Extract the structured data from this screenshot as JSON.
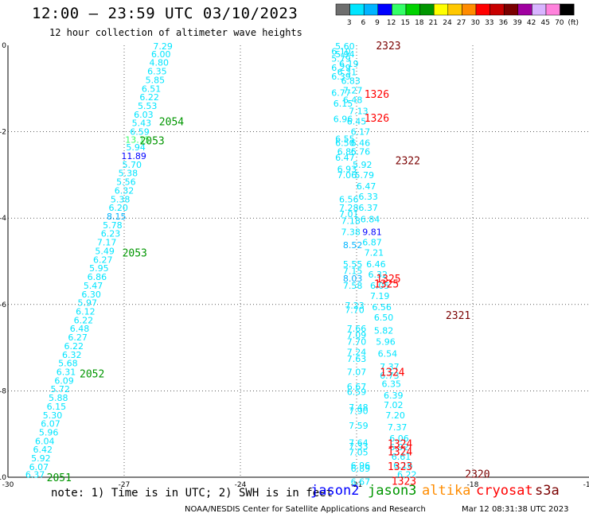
{
  "header": {
    "title": "12:00 — 23:59 UTC 03/10/2023",
    "subtitle": "12 hour collection of altimeter wave heights"
  },
  "colorbar": {
    "unit": "(ft)",
    "bins": [
      {
        "label": "3",
        "color": "#6e6e6e"
      },
      {
        "label": "6",
        "color": "#00e5ff"
      },
      {
        "label": "9",
        "color": "#00b4ff"
      },
      {
        "label": "12",
        "color": "#0000ff"
      },
      {
        "label": "15",
        "color": "#33ff66"
      },
      {
        "label": "18",
        "color": "#00d200"
      },
      {
        "label": "21",
        "color": "#009600"
      },
      {
        "label": "24",
        "color": "#ffff00"
      },
      {
        "label": "27",
        "color": "#ffc800"
      },
      {
        "label": "30",
        "color": "#ff8c00"
      },
      {
        "label": "33",
        "color": "#ff0000"
      },
      {
        "label": "36",
        "color": "#c80000"
      },
      {
        "label": "39",
        "color": "#7a0000"
      },
      {
        "label": "42",
        "color": "#a000a0"
      },
      {
        "label": "45",
        "color": "#d8b4ff"
      },
      {
        "label": "70",
        "color": "#ff82dc"
      },
      {
        "label": "",
        "color": "#000000"
      }
    ]
  },
  "footer": {
    "note": "note: 1) Time is in UTC; 2) SWH is in feet",
    "missions": [
      {
        "name": "jason2",
        "color": "#0000ff"
      },
      {
        "name": "jason3",
        "color": "#009600"
      },
      {
        "name": "altika",
        "color": "#ff8c00"
      },
      {
        "name": "cryosat",
        "color": "#ff0000"
      },
      {
        "name": "s3a",
        "color": "#7a0000"
      }
    ],
    "credit": "NOAA/NESDIS Center for Satellite Applications and Research",
    "generated": "Mar 12 08:31:38 UTC 2023"
  },
  "chart_data": {
    "type": "scatter",
    "xlim": [
      -30,
      -15
    ],
    "ylim": [
      -10,
      0
    ],
    "xticks": [
      "-30",
      "-27",
      "-24",
      "-21",
      "-18",
      "-15"
    ],
    "yticks": [
      "0",
      "-2",
      "-4",
      "-6",
      "-8",
      "-10"
    ],
    "grid": "dotted",
    "points": [
      {
        "lon": -26.0,
        "lat": -0.02,
        "v": "7.29",
        "c": "#00e5ff"
      },
      {
        "lon": -26.05,
        "lat": -0.2,
        "v": "6.00",
        "c": "#00e5ff"
      },
      {
        "lon": -26.1,
        "lat": -0.4,
        "v": "4.80",
        "c": "#00e5ff"
      },
      {
        "lon": -26.15,
        "lat": -0.6,
        "v": "6.35",
        "c": "#00e5ff"
      },
      {
        "lon": -26.2,
        "lat": -0.8,
        "v": "5.85",
        "c": "#00e5ff"
      },
      {
        "lon": -26.3,
        "lat": -1.0,
        "v": "6.51",
        "c": "#00e5ff"
      },
      {
        "lon": -26.35,
        "lat": -1.2,
        "v": "6.22",
        "c": "#00e5ff"
      },
      {
        "lon": -26.4,
        "lat": -1.4,
        "v": "5.53",
        "c": "#00e5ff"
      },
      {
        "lon": -26.5,
        "lat": -1.6,
        "v": "6.03",
        "c": "#00e5ff"
      },
      {
        "lon": -26.55,
        "lat": -1.8,
        "v": "5.43",
        "c": "#00e5ff"
      },
      {
        "lon": -26.6,
        "lat": -2.0,
        "v": "6.59",
        "c": "#00e5ff"
      },
      {
        "lon": -26.65,
        "lat": -2.18,
        "v": "13.15",
        "c": "#33ff66"
      },
      {
        "lon": -26.7,
        "lat": -2.36,
        "v": "5.94",
        "c": "#00e5ff"
      },
      {
        "lon": -26.75,
        "lat": -2.56,
        "v": "11.89",
        "c": "#0000ff"
      },
      {
        "lon": -26.8,
        "lat": -2.76,
        "v": "5.70",
        "c": "#00e5ff"
      },
      {
        "lon": -26.9,
        "lat": -2.96,
        "v": "5.38",
        "c": "#00e5ff"
      },
      {
        "lon": -26.95,
        "lat": -3.16,
        "v": "5.56",
        "c": "#00e5ff"
      },
      {
        "lon": -27.0,
        "lat": -3.36,
        "v": "6.32",
        "c": "#00e5ff"
      },
      {
        "lon": -27.1,
        "lat": -3.56,
        "v": "5.38",
        "c": "#00e5ff"
      },
      {
        "lon": -27.15,
        "lat": -3.76,
        "v": "6.20",
        "c": "#00e5ff"
      },
      {
        "lon": -27.2,
        "lat": -3.96,
        "v": "8.15",
        "c": "#00b4ff"
      },
      {
        "lon": -27.3,
        "lat": -4.16,
        "v": "5.78",
        "c": "#00e5ff"
      },
      {
        "lon": -27.35,
        "lat": -4.36,
        "v": "6.23",
        "c": "#00e5ff"
      },
      {
        "lon": -27.45,
        "lat": -4.56,
        "v": "7.17",
        "c": "#00e5ff"
      },
      {
        "lon": -27.5,
        "lat": -4.76,
        "v": "5.49",
        "c": "#00e5ff"
      },
      {
        "lon": -27.55,
        "lat": -4.96,
        "v": "6.27",
        "c": "#00e5ff"
      },
      {
        "lon": -27.65,
        "lat": -5.16,
        "v": "5.95",
        "c": "#00e5ff"
      },
      {
        "lon": -27.7,
        "lat": -5.36,
        "v": "6.86",
        "c": "#00e5ff"
      },
      {
        "lon": -27.8,
        "lat": -5.56,
        "v": "5.47",
        "c": "#00e5ff"
      },
      {
        "lon": -27.85,
        "lat": -5.76,
        "v": "6.30",
        "c": "#00e5ff"
      },
      {
        "lon": -27.95,
        "lat": -5.96,
        "v": "5.97",
        "c": "#00e5ff"
      },
      {
        "lon": -28.0,
        "lat": -6.16,
        "v": "6.12",
        "c": "#00e5ff"
      },
      {
        "lon": -28.05,
        "lat": -6.36,
        "v": "6.22",
        "c": "#00e5ff"
      },
      {
        "lon": -28.15,
        "lat": -6.56,
        "v": "6.48",
        "c": "#00e5ff"
      },
      {
        "lon": -28.2,
        "lat": -6.76,
        "v": "6.27",
        "c": "#00e5ff"
      },
      {
        "lon": -28.3,
        "lat": -6.96,
        "v": "6.22",
        "c": "#00e5ff"
      },
      {
        "lon": -28.35,
        "lat": -7.16,
        "v": "6.32",
        "c": "#00e5ff"
      },
      {
        "lon": -28.45,
        "lat": -7.36,
        "v": "5.68",
        "c": "#00e5ff"
      },
      {
        "lon": -28.5,
        "lat": -7.56,
        "v": "6.31",
        "c": "#00e5ff"
      },
      {
        "lon": -28.55,
        "lat": -7.76,
        "v": "6.09",
        "c": "#00e5ff"
      },
      {
        "lon": -28.65,
        "lat": -7.96,
        "v": "5.72",
        "c": "#00e5ff"
      },
      {
        "lon": -28.7,
        "lat": -8.16,
        "v": "5.88",
        "c": "#00e5ff"
      },
      {
        "lon": -28.75,
        "lat": -8.36,
        "v": "6.15",
        "c": "#00e5ff"
      },
      {
        "lon": -28.85,
        "lat": -8.56,
        "v": "5.30",
        "c": "#00e5ff"
      },
      {
        "lon": -28.9,
        "lat": -8.76,
        "v": "6.07",
        "c": "#00e5ff"
      },
      {
        "lon": -28.95,
        "lat": -8.96,
        "v": "5.96",
        "c": "#00e5ff"
      },
      {
        "lon": -29.05,
        "lat": -9.16,
        "v": "6.04",
        "c": "#00e5ff"
      },
      {
        "lon": -29.1,
        "lat": -9.36,
        "v": "6.42",
        "c": "#00e5ff"
      },
      {
        "lon": -29.15,
        "lat": -9.56,
        "v": "5.92",
        "c": "#00e5ff"
      },
      {
        "lon": -29.2,
        "lat": -9.76,
        "v": "6.07",
        "c": "#00e5ff"
      },
      {
        "lon": -29.3,
        "lat": -9.94,
        "v": "6.37",
        "c": "#00e5ff"
      },
      {
        "lon": -21.3,
        "lat": -0.02,
        "v": "5.60",
        "c": "#00e5ff"
      },
      {
        "lon": -21.4,
        "lat": -0.14,
        "v": "6.10",
        "c": "#00e5ff"
      },
      {
        "lon": -21.3,
        "lat": -0.2,
        "v": "5.94",
        "c": "#00e5ff"
      },
      {
        "lon": -21.4,
        "lat": -0.3,
        "v": "5.79",
        "c": "#00e5ff"
      },
      {
        "lon": -21.2,
        "lat": -0.42,
        "v": "6.19",
        "c": "#00e5ff"
      },
      {
        "lon": -21.4,
        "lat": -0.52,
        "v": "6.29",
        "c": "#00e5ff"
      },
      {
        "lon": -21.25,
        "lat": -0.62,
        "v": "6.31",
        "c": "#00e5ff"
      },
      {
        "lon": -21.4,
        "lat": -0.72,
        "v": "6.39",
        "c": "#00e5ff"
      },
      {
        "lon": -21.15,
        "lat": -0.82,
        "v": "6.83",
        "c": "#00e5ff"
      },
      {
        "lon": -21.1,
        "lat": -1.04,
        "v": "7.27",
        "c": "#00e5ff"
      },
      {
        "lon": -21.4,
        "lat": -1.1,
        "v": "6.77",
        "c": "#00e5ff"
      },
      {
        "lon": -21.1,
        "lat": -1.26,
        "v": "6.48",
        "c": "#00e5ff"
      },
      {
        "lon": -21.35,
        "lat": -1.34,
        "v": "6.15",
        "c": "#00e5ff"
      },
      {
        "lon": -20.95,
        "lat": -1.52,
        "v": "7.13",
        "c": "#00e5ff"
      },
      {
        "lon": -21.35,
        "lat": -1.7,
        "v": "6.96",
        "c": "#00e5ff"
      },
      {
        "lon": -21.0,
        "lat": -1.76,
        "v": "6.45",
        "c": "#00e5ff"
      },
      {
        "lon": -20.9,
        "lat": -2.0,
        "v": "6.17",
        "c": "#00e5ff"
      },
      {
        "lon": -21.3,
        "lat": -2.16,
        "v": "6.55",
        "c": "#00e5ff"
      },
      {
        "lon": -21.3,
        "lat": -2.26,
        "v": "6.50",
        "c": "#00e5ff"
      },
      {
        "lon": -20.9,
        "lat": -2.26,
        "v": "6.46",
        "c": "#00e5ff"
      },
      {
        "lon": -21.25,
        "lat": -2.46,
        "v": "6.85",
        "c": "#00e5ff"
      },
      {
        "lon": -20.9,
        "lat": -2.46,
        "v": "6.76",
        "c": "#00e5ff"
      },
      {
        "lon": -21.3,
        "lat": -2.6,
        "v": "6.47",
        "c": "#00e5ff"
      },
      {
        "lon": -20.85,
        "lat": -2.76,
        "v": "5.92",
        "c": "#00e5ff"
      },
      {
        "lon": -21.25,
        "lat": -2.86,
        "v": "6.93",
        "c": "#00e5ff"
      },
      {
        "lon": -21.25,
        "lat": -3.0,
        "v": "7.06",
        "c": "#00e5ff"
      },
      {
        "lon": -20.8,
        "lat": -3.0,
        "v": "5.79",
        "c": "#00e5ff"
      },
      {
        "lon": -20.75,
        "lat": -3.26,
        "v": "6.47",
        "c": "#00e5ff"
      },
      {
        "lon": -21.2,
        "lat": -3.56,
        "v": "6.56",
        "c": "#00e5ff"
      },
      {
        "lon": -20.7,
        "lat": -3.5,
        "v": "6.33",
        "c": "#00e5ff"
      },
      {
        "lon": -21.2,
        "lat": -3.76,
        "v": "7.28",
        "c": "#00e5ff"
      },
      {
        "lon": -20.7,
        "lat": -3.76,
        "v": "6.37",
        "c": "#00e5ff"
      },
      {
        "lon": -21.2,
        "lat": -3.9,
        "v": "7.01",
        "c": "#00e5ff"
      },
      {
        "lon": -21.15,
        "lat": -4.06,
        "v": "7.18",
        "c": "#00e5ff"
      },
      {
        "lon": -20.65,
        "lat": -4.02,
        "v": "6.84",
        "c": "#00e5ff"
      },
      {
        "lon": -21.15,
        "lat": -4.32,
        "v": "7.38",
        "c": "#00e5ff"
      },
      {
        "lon": -20.6,
        "lat": -4.32,
        "v": "9.81",
        "c": "#0000ff"
      },
      {
        "lon": -21.1,
        "lat": -4.62,
        "v": "8.52",
        "c": "#00b4ff"
      },
      {
        "lon": -20.6,
        "lat": -4.56,
        "v": "6.87",
        "c": "#00e5ff"
      },
      {
        "lon": -20.55,
        "lat": -4.8,
        "v": "7.21",
        "c": "#00e5ff"
      },
      {
        "lon": -21.1,
        "lat": -5.06,
        "v": "5.55",
        "c": "#00e5ff"
      },
      {
        "lon": -20.5,
        "lat": -5.06,
        "v": "6.46",
        "c": "#00e5ff"
      },
      {
        "lon": -21.1,
        "lat": -5.22,
        "v": "7.15",
        "c": "#00e5ff"
      },
      {
        "lon": -21.1,
        "lat": -5.4,
        "v": "8.03",
        "c": "#00b4ff"
      },
      {
        "lon": -20.45,
        "lat": -5.3,
        "v": "6.32",
        "c": "#00e5ff"
      },
      {
        "lon": -21.1,
        "lat": -5.56,
        "v": "7.58",
        "c": "#00e5ff"
      },
      {
        "lon": -20.4,
        "lat": -5.56,
        "v": "6.05",
        "c": "#00e5ff"
      },
      {
        "lon": -20.4,
        "lat": -5.8,
        "v": "7.19",
        "c": "#00e5ff"
      },
      {
        "lon": -21.05,
        "lat": -6.02,
        "v": "7.23",
        "c": "#00e5ff"
      },
      {
        "lon": -21.05,
        "lat": -6.12,
        "v": "7.70",
        "c": "#00e5ff"
      },
      {
        "lon": -20.35,
        "lat": -6.06,
        "v": "6.56",
        "c": "#00e5ff"
      },
      {
        "lon": -20.3,
        "lat": -6.3,
        "v": "6.50",
        "c": "#00e5ff"
      },
      {
        "lon": -21.0,
        "lat": -6.56,
        "v": "7.66",
        "c": "#00e5ff"
      },
      {
        "lon": -20.3,
        "lat": -6.6,
        "v": "5.82",
        "c": "#00e5ff"
      },
      {
        "lon": -21.0,
        "lat": -6.7,
        "v": "7.09",
        "c": "#00e5ff"
      },
      {
        "lon": -21.0,
        "lat": -6.86,
        "v": "7.70",
        "c": "#00e5ff"
      },
      {
        "lon": -20.25,
        "lat": -6.86,
        "v": "5.96",
        "c": "#00e5ff"
      },
      {
        "lon": -21.0,
        "lat": -7.1,
        "v": "7.24",
        "c": "#00e5ff"
      },
      {
        "lon": -20.2,
        "lat": -7.14,
        "v": "6.54",
        "c": "#00e5ff"
      },
      {
        "lon": -21.0,
        "lat": -7.26,
        "v": "7.63",
        "c": "#00e5ff"
      },
      {
        "lon": -20.15,
        "lat": -7.44,
        "v": "7.37",
        "c": "#00e5ff"
      },
      {
        "lon": -21.0,
        "lat": -7.56,
        "v": "7.07",
        "c": "#00e5ff"
      },
      {
        "lon": -20.15,
        "lat": -7.64,
        "v": "6.73",
        "c": "#00e5ff"
      },
      {
        "lon": -20.1,
        "lat": -7.84,
        "v": "6.35",
        "c": "#00e5ff"
      },
      {
        "lon": -21.0,
        "lat": -7.9,
        "v": "6.67",
        "c": "#00e5ff"
      },
      {
        "lon": -21.0,
        "lat": -8.02,
        "v": "6.59",
        "c": "#00e5ff"
      },
      {
        "lon": -20.05,
        "lat": -8.1,
        "v": "6.39",
        "c": "#00e5ff"
      },
      {
        "lon": -20.05,
        "lat": -8.32,
        "v": "7.02",
        "c": "#00e5ff"
      },
      {
        "lon": -20.95,
        "lat": -8.38,
        "v": "7.48",
        "c": "#00e5ff"
      },
      {
        "lon": -20.95,
        "lat": -8.46,
        "v": "7.90",
        "c": "#00e5ff"
      },
      {
        "lon": -20.0,
        "lat": -8.56,
        "v": "7.20",
        "c": "#00e5ff"
      },
      {
        "lon": -20.95,
        "lat": -8.8,
        "v": "7.59",
        "c": "#00e5ff"
      },
      {
        "lon": -19.95,
        "lat": -8.84,
        "v": "7.37",
        "c": "#00e5ff"
      },
      {
        "lon": -19.9,
        "lat": -9.1,
        "v": "6.06",
        "c": "#00e5ff"
      },
      {
        "lon": -20.95,
        "lat": -9.2,
        "v": "7.64",
        "c": "#00e5ff"
      },
      {
        "lon": -20.95,
        "lat": -9.28,
        "v": "7.33",
        "c": "#00e5ff"
      },
      {
        "lon": -19.9,
        "lat": -9.3,
        "v": "6.92",
        "c": "#00e5ff"
      },
      {
        "lon": -20.95,
        "lat": -9.42,
        "v": "7.05",
        "c": "#00e5ff"
      },
      {
        "lon": -19.85,
        "lat": -9.52,
        "v": "6.61",
        "c": "#00e5ff"
      },
      {
        "lon": -20.9,
        "lat": -9.72,
        "v": "6.96",
        "c": "#00e5ff"
      },
      {
        "lon": -20.9,
        "lat": -9.8,
        "v": "6.89",
        "c": "#00e5ff"
      },
      {
        "lon": -19.8,
        "lat": -9.72,
        "v": "6.16",
        "c": "#00e5ff"
      },
      {
        "lon": -19.7,
        "lat": -9.94,
        "v": "6.22",
        "c": "#00e5ff"
      },
      {
        "lon": -20.9,
        "lat": -10.1,
        "v": "6.67",
        "c": "#00e5ff"
      }
    ],
    "pass_labels": [
      {
        "lon": -26.1,
        "lat": -1.76,
        "text": "2054",
        "c": "#009600"
      },
      {
        "lon": -26.6,
        "lat": -2.2,
        "text": "2053",
        "c": "#009600"
      },
      {
        "lon": -27.05,
        "lat": -4.8,
        "text": "2053",
        "c": "#009600"
      },
      {
        "lon": -28.15,
        "lat": -7.6,
        "text": "2052",
        "c": "#009600"
      },
      {
        "lon": -29.0,
        "lat": -10.0,
        "text": "2051",
        "c": "#009600"
      },
      {
        "lon": -20.5,
        "lat": 0.0,
        "text": "2323",
        "c": "#7a0000"
      },
      {
        "lon": -20.8,
        "lat": -1.12,
        "text": "1326",
        "c": "#ff0000"
      },
      {
        "lon": -20.8,
        "lat": -1.68,
        "text": "1326",
        "c": "#ff0000"
      },
      {
        "lon": -20.0,
        "lat": -2.66,
        "text": "2322",
        "c": "#7a0000"
      },
      {
        "lon": -20.5,
        "lat": -5.4,
        "text": "1325",
        "c": "#ff0000"
      },
      {
        "lon": -20.55,
        "lat": -5.52,
        "text": "1325",
        "c": "#ff0000"
      },
      {
        "lon": -18.7,
        "lat": -6.24,
        "text": "2321",
        "c": "#7a0000"
      },
      {
        "lon": -20.4,
        "lat": -7.56,
        "text": "1324",
        "c": "#ff0000"
      },
      {
        "lon": -20.2,
        "lat": -9.22,
        "text": "1324",
        "c": "#ff0000"
      },
      {
        "lon": -20.2,
        "lat": -9.4,
        "text": "1324",
        "c": "#ff0000"
      },
      {
        "lon": -20.2,
        "lat": -9.74,
        "text": "1323",
        "c": "#ff0000"
      },
      {
        "lon": -18.2,
        "lat": -9.92,
        "text": "2320",
        "c": "#7a0000"
      },
      {
        "lon": -20.1,
        "lat": -10.08,
        "text": "1323",
        "c": "#ff0000"
      }
    ]
  }
}
